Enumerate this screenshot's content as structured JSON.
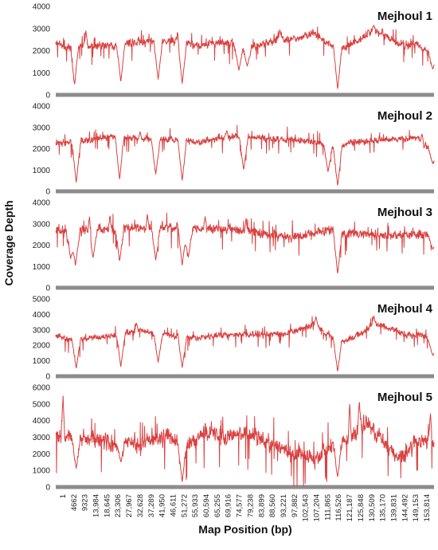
{
  "chart_data": {
    "type": "line",
    "ylabel": "Coverage Depth",
    "xlabel": "Map Position (bp)",
    "x_ticks": [
      "1",
      "4662",
      "9323",
      "13,984",
      "18,645",
      "23,306",
      "27,967",
      "32,628",
      "37,289",
      "41,950",
      "46,611",
      "51,272",
      "55,933",
      "60,594",
      "65,255",
      "69,916",
      "74,577",
      "79,238",
      "83,899",
      "88,560",
      "93,221",
      "97,882",
      "102,543",
      "107,204",
      "111,865",
      "116,526",
      "121,187",
      "125,848",
      "130,509",
      "135,170",
      "139,831",
      "144,492",
      "149,153",
      "153,814"
    ],
    "x_range": [
      1,
      157000
    ],
    "line_color": "#d94040",
    "axis_bar_color": "#8c8c8c",
    "panels": [
      {
        "name": "Mejhoul 1",
        "ylim": [
          0,
          4000
        ],
        "yticks": [
          "0",
          "1000",
          "2000",
          "3000",
          "4000"
        ],
        "baseline": [
          [
            0,
            2350
          ],
          [
            5000,
            2100
          ],
          [
            8000,
            2300
          ],
          [
            15000,
            2250
          ],
          [
            22000,
            2200
          ],
          [
            30000,
            2350
          ],
          [
            40000,
            2400
          ],
          [
            50000,
            2400
          ],
          [
            60000,
            2250
          ],
          [
            70000,
            2350
          ],
          [
            80000,
            2100
          ],
          [
            90000,
            2450
          ],
          [
            100000,
            2550
          ],
          [
            107000,
            2800
          ],
          [
            113000,
            2300
          ],
          [
            120000,
            2150
          ],
          [
            125000,
            2400
          ],
          [
            131000,
            2900
          ],
          [
            136000,
            2750
          ],
          [
            142000,
            2300
          ],
          [
            150000,
            2250
          ],
          [
            157000,
            1800
          ]
        ],
        "noise": 230,
        "dips": [
          [
            7800,
            450
          ],
          [
            27000,
            600
          ],
          [
            42500,
            700
          ],
          [
            52500,
            500
          ],
          [
            76000,
            1100
          ],
          [
            79500,
            1300
          ],
          [
            117000,
            250
          ],
          [
            156500,
            1150
          ]
        ],
        "spikes": [
          [
            12500,
            2950
          ],
          [
            50500,
            2850
          ],
          [
            93000,
            2950
          ],
          [
            132000,
            3150
          ]
        ]
      },
      {
        "name": "Mejhoul 2",
        "ylim": [
          0,
          4000
        ],
        "yticks": [
          "0",
          "1000",
          "2000",
          "3000",
          "4000"
        ],
        "baseline": [
          [
            0,
            2200
          ],
          [
            8000,
            2350
          ],
          [
            15000,
            2400
          ],
          [
            22000,
            2550
          ],
          [
            30000,
            2500
          ],
          [
            40000,
            2400
          ],
          [
            50000,
            2450
          ],
          [
            60000,
            2300
          ],
          [
            70000,
            2550
          ],
          [
            80000,
            2550
          ],
          [
            90000,
            2450
          ],
          [
            100000,
            2400
          ],
          [
            110000,
            2250
          ],
          [
            116000,
            2000
          ],
          [
            122000,
            2250
          ],
          [
            130000,
            2350
          ],
          [
            140000,
            2450
          ],
          [
            150000,
            2500
          ],
          [
            157000,
            1800
          ]
        ],
        "noise": 200,
        "dips": [
          [
            8500,
            400
          ],
          [
            26500,
            550
          ],
          [
            41500,
            800
          ],
          [
            52500,
            500
          ],
          [
            78000,
            1000
          ],
          [
            113000,
            900
          ],
          [
            117000,
            250
          ],
          [
            156500,
            1300
          ]
        ],
        "spikes": [
          [
            35000,
            2800
          ],
          [
            71000,
            2850
          ],
          [
            152000,
            2700
          ]
        ]
      },
      {
        "name": "Mejhoul 3",
        "ylim": [
          0,
          4000
        ],
        "yticks": [
          "0",
          "1000",
          "2000",
          "3000",
          "4000"
        ],
        "baseline": [
          [
            0,
            2650
          ],
          [
            10000,
            2650
          ],
          [
            20000,
            2750
          ],
          [
            30000,
            2800
          ],
          [
            40000,
            2800
          ],
          [
            50000,
            2850
          ],
          [
            60000,
            2750
          ],
          [
            70000,
            2800
          ],
          [
            80000,
            2650
          ],
          [
            90000,
            2450
          ],
          [
            100000,
            2350
          ],
          [
            108000,
            2600
          ],
          [
            115000,
            2700
          ],
          [
            120000,
            2500
          ],
          [
            128000,
            2550
          ],
          [
            135000,
            2450
          ],
          [
            145000,
            2500
          ],
          [
            155000,
            2550
          ],
          [
            157000,
            2200
          ]
        ],
        "noise": 280,
        "dips": [
          [
            6200,
            1350
          ],
          [
            8200,
            1050
          ],
          [
            15500,
            1400
          ],
          [
            26500,
            1250
          ],
          [
            41500,
            1300
          ],
          [
            52500,
            1050
          ],
          [
            55000,
            1400
          ],
          [
            117000,
            650
          ],
          [
            156500,
            1800
          ]
        ],
        "spikes": [
          [
            14000,
            3350
          ],
          [
            22500,
            3400
          ],
          [
            38000,
            3450
          ],
          [
            62000,
            3350
          ],
          [
            79000,
            3300
          ]
        ]
      },
      {
        "name": "Mejhoul 4",
        "ylim": [
          0,
          5000
        ],
        "yticks": [
          "0",
          "1000",
          "2000",
          "3000",
          "4000",
          "5000"
        ],
        "baseline": [
          [
            0,
            2700
          ],
          [
            6000,
            2300
          ],
          [
            12000,
            2400
          ],
          [
            20000,
            2600
          ],
          [
            28000,
            2700
          ],
          [
            35000,
            3000
          ],
          [
            42000,
            2700
          ],
          [
            50000,
            2600
          ],
          [
            58000,
            2500
          ],
          [
            66000,
            2600
          ],
          [
            75000,
            2700
          ],
          [
            85000,
            2700
          ],
          [
            95000,
            2750
          ],
          [
            102000,
            3100
          ],
          [
            108000,
            3400
          ],
          [
            113000,
            2600
          ],
          [
            120000,
            2300
          ],
          [
            126000,
            2700
          ],
          [
            132000,
            3400
          ],
          [
            137000,
            3200
          ],
          [
            145000,
            2700
          ],
          [
            153000,
            2650
          ],
          [
            157000,
            1900
          ]
        ],
        "noise": 260,
        "dips": [
          [
            8500,
            500
          ],
          [
            27000,
            600
          ],
          [
            42500,
            900
          ],
          [
            52500,
            550
          ],
          [
            117000,
            300
          ],
          [
            156500,
            1350
          ]
        ],
        "spikes": [
          [
            33500,
            3450
          ],
          [
            108000,
            3850
          ],
          [
            132000,
            3900
          ]
        ]
      },
      {
        "name": "Mejhoul 5",
        "ylim": [
          0,
          6000
        ],
        "yticks": [
          "0",
          "1000",
          "2000",
          "3000",
          "4000",
          "5000",
          "6000"
        ],
        "baseline": [
          [
            0,
            3100
          ],
          [
            5000,
            3000
          ],
          [
            10000,
            2900
          ],
          [
            15000,
            3000
          ],
          [
            20000,
            2800
          ],
          [
            25000,
            2500
          ],
          [
            30000,
            2600
          ],
          [
            35000,
            2500
          ],
          [
            40000,
            3000
          ],
          [
            45000,
            3100
          ],
          [
            50000,
            2700
          ],
          [
            55000,
            2600
          ],
          [
            62000,
            3300
          ],
          [
            70000,
            3100
          ],
          [
            78000,
            3200
          ],
          [
            85000,
            2900
          ],
          [
            92000,
            2500
          ],
          [
            98000,
            1900
          ],
          [
            103000,
            2000
          ],
          [
            108000,
            1700
          ],
          [
            113000,
            2300
          ],
          [
            118000,
            2600
          ],
          [
            124000,
            3300
          ],
          [
            130000,
            3800
          ],
          [
            135000,
            2900
          ],
          [
            140000,
            1900
          ],
          [
            145000,
            2000
          ],
          [
            150000,
            2700
          ],
          [
            155000,
            2900
          ],
          [
            157000,
            2400
          ]
        ],
        "noise": 650,
        "dips": [
          [
            8500,
            1100
          ],
          [
            27000,
            1500
          ],
          [
            52500,
            300
          ],
          [
            117000,
            600
          ]
        ],
        "spikes": [
          [
            3000,
            5600
          ],
          [
            122000,
            5000
          ],
          [
            126000,
            5200
          ],
          [
            155500,
            4500
          ]
        ]
      }
    ]
  }
}
